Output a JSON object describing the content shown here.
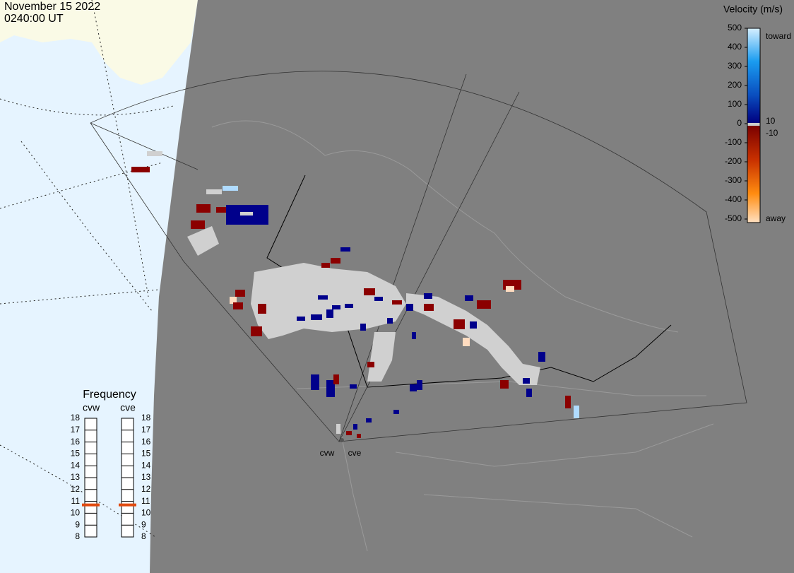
{
  "header": {
    "date": "November 15 2022",
    "time": "0240:00 UT"
  },
  "velocity_scale": {
    "title": "Velocity (m/s)",
    "ticks": [
      500,
      400,
      300,
      200,
      100,
      0,
      -100,
      -200,
      -300,
      -400,
      -500
    ],
    "low_label_pos": "10",
    "low_label_neg": "-10",
    "top_label": "toward",
    "bottom_label": "away"
  },
  "frequency": {
    "title": "Frequency",
    "ticks": [
      8,
      9,
      10,
      11,
      12,
      13,
      14,
      15,
      16,
      17,
      18
    ],
    "radars": [
      {
        "name": "cvw",
        "frequency": 10.7
      },
      {
        "name": "cve",
        "frequency": 10.7
      }
    ]
  },
  "map": {
    "radar_labels": [
      "cvw",
      "cve"
    ]
  }
}
